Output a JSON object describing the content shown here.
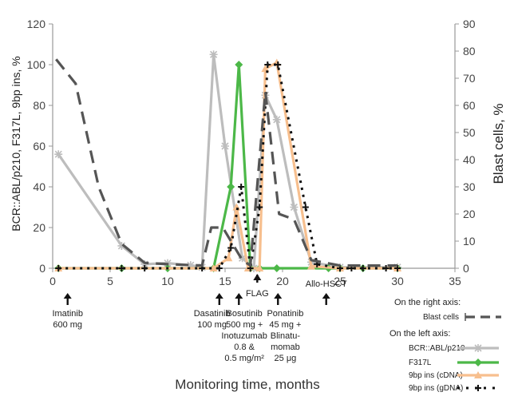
{
  "chart_data": {
    "type": "line",
    "xlabel": "Monitoring time, months",
    "ylabel_left": "BCR::ABL/p210, F317L, 9bp ins, %",
    "ylabel_right": "Blast cells, %",
    "x_ticks": [
      0,
      5,
      10,
      15,
      20,
      25,
      30,
      35
    ],
    "y_left_ticks": [
      0,
      20,
      40,
      60,
      80,
      100,
      120
    ],
    "y_right_ticks": [
      0,
      10,
      20,
      30,
      40,
      50,
      60,
      70,
      80,
      90
    ],
    "xlim": [
      0,
      35
    ],
    "ylim_left": [
      0,
      120
    ],
    "ylim_right": [
      0,
      90
    ],
    "grid": false,
    "series": [
      {
        "name": "Blast cells",
        "axis": "right",
        "color": "#555555",
        "style": "long-dash",
        "points": [
          [
            0.3,
            77
          ],
          [
            2,
            68
          ],
          [
            4,
            30
          ],
          [
            6,
            9
          ],
          [
            8,
            2
          ],
          [
            10,
            1.5
          ],
          [
            13,
            1
          ],
          [
            13.8,
            15
          ],
          [
            14.8,
            15
          ],
          [
            16.5,
            3
          ],
          [
            17.2,
            1
          ],
          [
            18.5,
            65
          ],
          [
            19.7,
            20
          ],
          [
            21,
            18
          ],
          [
            22.5,
            3
          ],
          [
            25,
            1
          ],
          [
            30,
            1
          ]
        ]
      },
      {
        "name": "BCR::ABL/p210",
        "axis": "left",
        "color": "#bdbdbd",
        "style": "solid",
        "marker": "asterisk",
        "points": [
          [
            0.5,
            56
          ],
          [
            6,
            11
          ],
          [
            8,
            2
          ],
          [
            10,
            2.5
          ],
          [
            12,
            1.5
          ],
          [
            13,
            0.5
          ],
          [
            14,
            105
          ],
          [
            15,
            60
          ],
          [
            16.5,
            5
          ],
          [
            17.5,
            0
          ],
          [
            18.5,
            85
          ],
          [
            19.5,
            73
          ],
          [
            21,
            30
          ],
          [
            22.5,
            3
          ],
          [
            25,
            0.5
          ],
          [
            30,
            0.5
          ]
        ]
      },
      {
        "name": "F317L",
        "axis": "left",
        "color": "#4cb848",
        "style": "solid",
        "marker": "diamond",
        "points": [
          [
            0.5,
            0
          ],
          [
            6,
            0
          ],
          [
            10,
            0
          ],
          [
            14,
            0
          ],
          [
            15.5,
            40
          ],
          [
            16.2,
            100
          ],
          [
            17.2,
            0
          ],
          [
            18,
            0
          ],
          [
            19.5,
            0
          ],
          [
            24,
            0
          ],
          [
            25,
            0
          ],
          [
            27,
            0
          ],
          [
            30,
            0
          ]
        ]
      },
      {
        "name": "9bp ins (cDNA)",
        "axis": "left",
        "color": "#f7bf8e",
        "style": "solid",
        "marker": "triangle",
        "points": [
          [
            0.5,
            0
          ],
          [
            14,
            0
          ],
          [
            15.3,
            5
          ],
          [
            16,
            30
          ],
          [
            17,
            0
          ],
          [
            18,
            0
          ],
          [
            18.5,
            98
          ],
          [
            19.5,
            101
          ],
          [
            22.5,
            1
          ],
          [
            25,
            0
          ],
          [
            30,
            0
          ]
        ]
      },
      {
        "name": "9bp ins (gDNA)",
        "axis": "left",
        "color": "#111111",
        "style": "dotted",
        "marker": "plus",
        "points": [
          [
            0.5,
            0
          ],
          [
            6,
            0
          ],
          [
            8,
            0
          ],
          [
            13,
            0
          ],
          [
            14.5,
            0
          ],
          [
            15.5,
            10
          ],
          [
            16.4,
            40
          ],
          [
            17.2,
            0
          ],
          [
            18,
            30
          ],
          [
            18.7,
            100
          ],
          [
            19.6,
            100
          ],
          [
            22,
            30
          ],
          [
            23,
            2
          ],
          [
            25,
            0
          ],
          [
            26,
            0
          ],
          [
            27,
            0
          ],
          [
            29,
            0
          ],
          [
            30,
            0
          ]
        ]
      }
    ],
    "annotations": [
      {
        "x": 1.3,
        "text": "Imatinib\n600 mg"
      },
      {
        "x": 14.5,
        "text": "Dasatinib\n100 mg"
      },
      {
        "x": 16.2,
        "text": "Bosutinib\n500 mg +\nInotuzumab\n0.8 &\n0.5 mg/m²"
      },
      {
        "x": 17.8,
        "text": "FLAG"
      },
      {
        "x": 19.6,
        "text": "Ponatinib\n45 mg +\nBlinatu-\nmomab\n25 μg"
      },
      {
        "x": 23.8,
        "text": "Allo-HSCT"
      }
    ],
    "legend": {
      "right_axis_title": "On the right axis:",
      "left_axis_title": "On the left axis:",
      "entries": [
        "Blast cells",
        "BCR::ABL/p210",
        "F317L",
        "9bp ins (cDNA)",
        "9bp ins (gDNA)"
      ]
    }
  }
}
